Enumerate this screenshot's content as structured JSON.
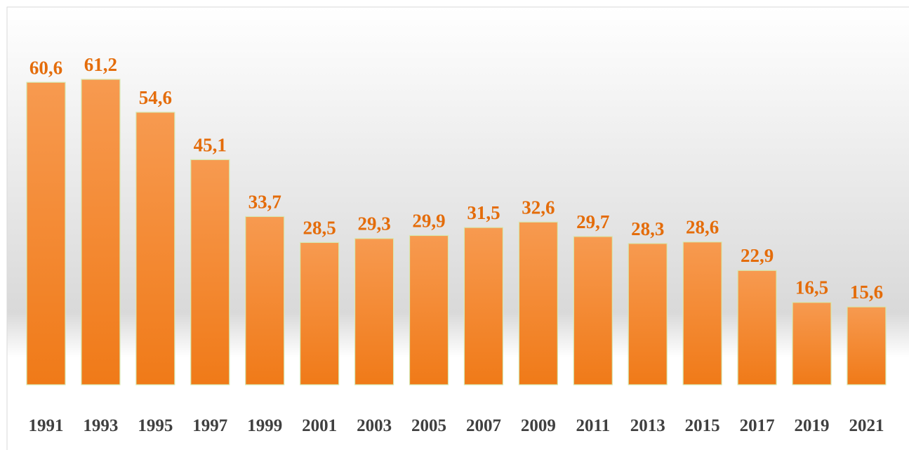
{
  "chart_data": {
    "type": "bar",
    "categories": [
      "1991",
      "1993",
      "1995",
      "1997",
      "1999",
      "2001",
      "2003",
      "2005",
      "2007",
      "2009",
      "2011",
      "2013",
      "2015",
      "2017",
      "2019",
      "2021"
    ],
    "values": [
      60.6,
      61.2,
      54.6,
      45.1,
      33.7,
      28.5,
      29.3,
      29.9,
      31.5,
      32.6,
      29.7,
      28.3,
      28.6,
      22.9,
      16.5,
      15.6
    ],
    "value_labels": [
      "60,6",
      "61,2",
      "54,6",
      "45,1",
      "33,7",
      "28,5",
      "29,3",
      "29,9",
      "31,5",
      "32,6",
      "29,7",
      "28,3",
      "28,6",
      "22,9",
      "16,5",
      "15,6"
    ],
    "color": "#f58a35"
  }
}
